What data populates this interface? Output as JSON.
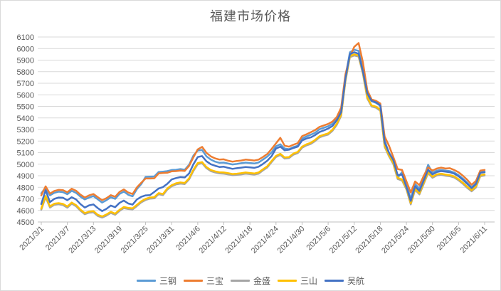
{
  "chart_data": {
    "type": "line",
    "title": "福建市场价格",
    "x_axis": {
      "tick_labels": [
        "2021/3/1",
        "2021/3/7",
        "2021/3/13",
        "2021/3/19",
        "2021/3/25",
        "2021/3/31",
        "2021/4/6",
        "2021/4/12",
        "2021/4/18",
        "2021/4/24",
        "2021/4/30",
        "2021/5/6",
        "2021/5/12",
        "2021/5/18",
        "2021/5/24",
        "2021/5/30",
        "2021/6/5",
        "2021/6/11"
      ],
      "tick_every": 6,
      "point_count": 103,
      "label_rotation_deg": -45
    },
    "y_axis": {
      "min": 4500,
      "max": 6100,
      "step": 100
    },
    "grid": true,
    "legend_position": "bottom",
    "colors": {
      "title": "#595959",
      "axis_label": "#595959",
      "gridline": "#D9D9D9",
      "axis_line": "#BFBFBF",
      "background": "#FFFFFF",
      "border": "#D9D9D9"
    },
    "series": [
      {
        "name": "三钢",
        "color": "#5B9BD5",
        "values": [
          4748,
          4798,
          4730,
          4752,
          4762,
          4758,
          4740,
          4770,
          4752,
          4720,
          4695,
          4712,
          4724,
          4696,
          4668,
          4688,
          4714,
          4700,
          4742,
          4763,
          4735,
          4722,
          4785,
          4828,
          4890,
          4892,
          4894,
          4932,
          4936,
          4940,
          4950,
          4952,
          4958,
          4952,
          4995,
          5075,
          5118,
          5122,
          5068,
          5040,
          5022,
          5012,
          5014,
          5005,
          4998,
          5002,
          5008,
          5014,
          5010,
          5006,
          5015,
          5040,
          5066,
          5102,
          5155,
          5172,
          5135,
          5130,
          5148,
          5160,
          5222,
          5240,
          5255,
          5272,
          5302,
          5315,
          5328,
          5350,
          5392,
          5465,
          5760,
          5968,
          5990,
          5980,
          5815,
          5600,
          5545,
          5530,
          5505,
          5205,
          5095,
          5028,
          4882,
          4932,
          4825,
          4700,
          4828,
          4790,
          4882,
          4995,
          4925,
          4945,
          4950,
          4945,
          4940,
          4928,
          4905,
          4875,
          4840,
          4800,
          4835,
          4930,
          4935
        ]
      },
      {
        "name": "三宝",
        "color": "#ED7D31",
        "values": [
          4730,
          4808,
          4745,
          4768,
          4778,
          4775,
          4757,
          4788,
          4770,
          4736,
          4712,
          4730,
          4742,
          4715,
          4688,
          4706,
          4732,
          4718,
          4760,
          4782,
          4755,
          4742,
          4800,
          4840,
          4876,
          4876,
          4878,
          4920,
          4924,
          4926,
          4938,
          4940,
          4945,
          4942,
          4985,
          5060,
          5128,
          5150,
          5098,
          5068,
          5050,
          5040,
          5042,
          5030,
          5022,
          5028,
          5032,
          5040,
          5036,
          5032,
          5040,
          5062,
          5088,
          5132,
          5180,
          5228,
          5160,
          5152,
          5168,
          5182,
          5242,
          5258,
          5276,
          5295,
          5322,
          5335,
          5348,
          5368,
          5408,
          5490,
          5780,
          5930,
          6015,
          6048,
          5880,
          5640,
          5560,
          5548,
          5525,
          5240,
          5160,
          5062,
          4958,
          4950,
          4852,
          4755,
          4850,
          4818,
          4900,
          4972,
          4945,
          4962,
          4970,
          4962,
          4965,
          4950,
          4930,
          4900,
          4865,
          4822,
          4855,
          4945,
          4950
        ]
      },
      {
        "name": "金盛",
        "color": "#A5A5A5",
        "values": [
          4605,
          4715,
          4625,
          4648,
          4653,
          4646,
          4624,
          4658,
          4636,
          4597,
          4567,
          4580,
          4584,
          4552,
          4538,
          4555,
          4578,
          4562,
          4595,
          4620,
          4612,
          4608,
          4638,
          4670,
          4690,
          4702,
          4705,
          4740,
          4732,
          4780,
          4808,
          4825,
          4832,
          4828,
          4868,
          4942,
          5000,
          5008,
          4965,
          4940,
          4928,
          4920,
          4918,
          4912,
          4905,
          4908,
          4912,
          4918,
          4914,
          4910,
          4918,
          4946,
          4972,
          5018,
          5062,
          5080,
          5048,
          5052,
          5082,
          5096,
          5142,
          5162,
          5175,
          5200,
          5232,
          5245,
          5256,
          5288,
          5340,
          5418,
          5720,
          5925,
          5940,
          5930,
          5780,
          5568,
          5498,
          5488,
          5462,
          5150,
          5068,
          5000,
          4872,
          4858,
          4782,
          4652,
          4778,
          4738,
          4830,
          4922,
          4882,
          4902,
          4908,
          4900,
          4895,
          4885,
          4860,
          4830,
          4795,
          4765,
          4798,
          4895,
          4902
        ]
      },
      {
        "name": "三山",
        "color": "#FFC000",
        "values": [
          4615,
          4725,
          4635,
          4658,
          4663,
          4656,
          4634,
          4668,
          4646,
          4607,
          4577,
          4590,
          4594,
          4562,
          4548,
          4565,
          4588,
          4572,
          4605,
          4630,
          4622,
          4618,
          4648,
          4680,
          4700,
          4712,
          4715,
          4750,
          4742,
          4790,
          4818,
          4835,
          4842,
          4838,
          4878,
          4952,
          5010,
          5018,
          4975,
          4950,
          4938,
          4930,
          4928,
          4922,
          4915,
          4918,
          4922,
          4928,
          4924,
          4920,
          4928,
          4956,
          4982,
          5028,
          5072,
          5090,
          5058,
          5062,
          5092,
          5106,
          5152,
          5172,
          5185,
          5210,
          5242,
          5255,
          5266,
          5298,
          5350,
          5428,
          5730,
          5935,
          5950,
          5940,
          5790,
          5578,
          5508,
          5498,
          5472,
          5160,
          5078,
          5010,
          4882,
          4868,
          4792,
          4662,
          4788,
          4748,
          4840,
          4932,
          4892,
          4912,
          4918,
          4910,
          4905,
          4895,
          4870,
          4840,
          4805,
          4775,
          4808,
          4905,
          4912
        ]
      },
      {
        "name": "吴航",
        "color": "#4472C4",
        "values": [
          4655,
          4775,
          4672,
          4700,
          4712,
          4710,
          4688,
          4714,
          4695,
          4655,
          4625,
          4644,
          4652,
          4620,
          4594,
          4614,
          4642,
          4628,
          4665,
          4685,
          4660,
          4650,
          4695,
          4718,
          4730,
          4732,
          4760,
          4790,
          4802,
          4830,
          4868,
          4880,
          4888,
          4885,
          4920,
          5000,
          5062,
          5070,
          5025,
          5000,
          4986,
          4976,
          4978,
          4968,
          4960,
          4965,
          4970,
          4975,
          4972,
          4968,
          4978,
          5002,
          5030,
          5070,
          5135,
          5152,
          5120,
          5125,
          5140,
          5152,
          5205,
          5222,
          5232,
          5252,
          5278,
          5292,
          5308,
          5330,
          5380,
          5450,
          5745,
          5952,
          5968,
          5955,
          5800,
          5612,
          5548,
          5535,
          5508,
          5188,
          5100,
          5035,
          4905,
          4912,
          4802,
          4682,
          4808,
          4768,
          4860,
          4952,
          4912,
          4932,
          4940,
          4935,
          4930,
          4918,
          4895,
          4865,
          4830,
          4793,
          4828,
          4925,
          4930
        ]
      }
    ]
  }
}
